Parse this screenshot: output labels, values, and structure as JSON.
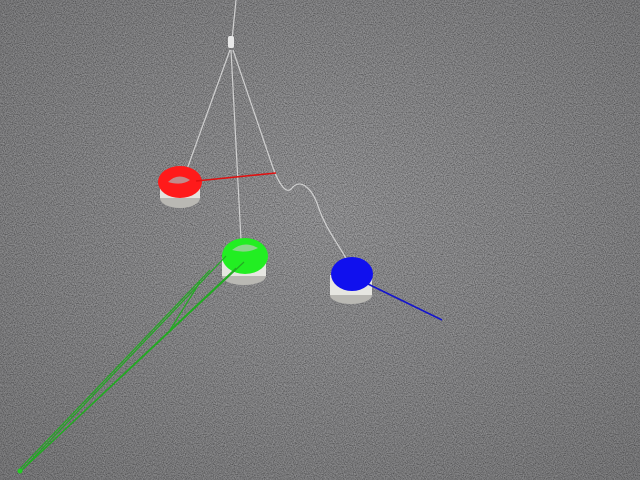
{
  "scene": {
    "description_free": true,
    "background": "carpet",
    "colors": {
      "carpet_light": "#7a7a7c",
      "carpet_dark": "#454547",
      "string": "#d8d8d8",
      "cap_body": "#e8e8e4",
      "cap_shadow": "#b9b8b3",
      "marker_red": "#ff1a1a",
      "marker_green": "#22ee22",
      "marker_blue": "#1010ee",
      "line_red": "#e01010",
      "line_green": "#22aa22",
      "line_blue": "#1515cc"
    },
    "objects": [
      {
        "name": "red-marker-cap",
        "color": "red"
      },
      {
        "name": "green-marker-cap",
        "color": "green"
      },
      {
        "name": "blue-marker-cap",
        "color": "blue"
      }
    ]
  }
}
